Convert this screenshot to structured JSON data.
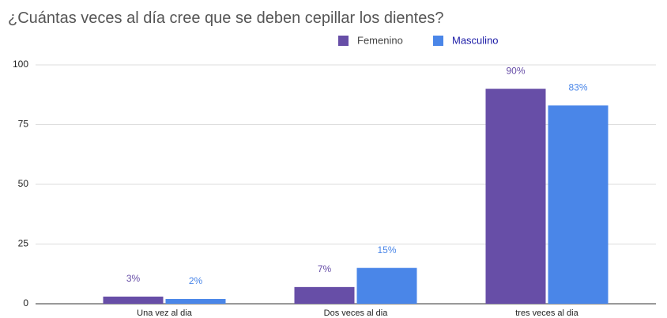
{
  "chart_data": {
    "type": "bar",
    "title": "¿Cuántas veces al día cree que se deben cepillar los dientes?",
    "categories": [
      "Una vez al dia",
      "Dos veces al dia",
      "tres veces al dia"
    ],
    "series": [
      {
        "name": "Femenino",
        "color": "#674ea7",
        "values": [
          3,
          7,
          90
        ],
        "value_labels": [
          "3%",
          "7%",
          "90%"
        ]
      },
      {
        "name": "Masculino",
        "color": "#4a86e8",
        "values": [
          2,
          15,
          83
        ],
        "value_labels": [
          "2%",
          "15%",
          "83%"
        ]
      }
    ],
    "ylim": [
      0,
      100
    ],
    "yticks": [
      0,
      25,
      50,
      75,
      100
    ],
    "grid": true,
    "legend": "top"
  }
}
